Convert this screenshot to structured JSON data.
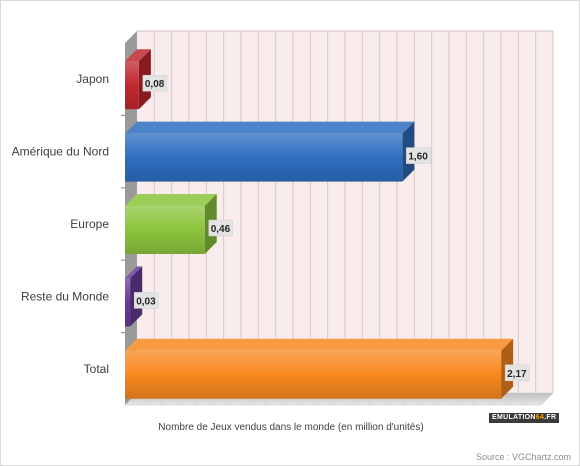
{
  "chart_data": {
    "type": "bar",
    "orientation": "horizontal",
    "categories": [
      "Japon",
      "Amérique du Nord",
      "Europe",
      "Reste du Monde",
      "Total"
    ],
    "values": [
      0.08,
      1.6,
      0.46,
      0.03,
      2.17
    ],
    "value_labels": [
      "0,08",
      "1,60",
      "0,46",
      "0,03",
      "2,17"
    ],
    "colors": [
      "#c0282e",
      "#2e6ec0",
      "#8cc43c",
      "#6a3a9c",
      "#f7881f"
    ],
    "xlabel": "Nombre de Jeux vendus dans le monde (en million d'unités)",
    "xlim": [
      0,
      2.4
    ],
    "grid": true,
    "style": "3d"
  },
  "source": "Source : VGChartz.com",
  "logo": {
    "text_main": "EMULATION",
    "text_accent": "64",
    "text_end": ".FR"
  }
}
